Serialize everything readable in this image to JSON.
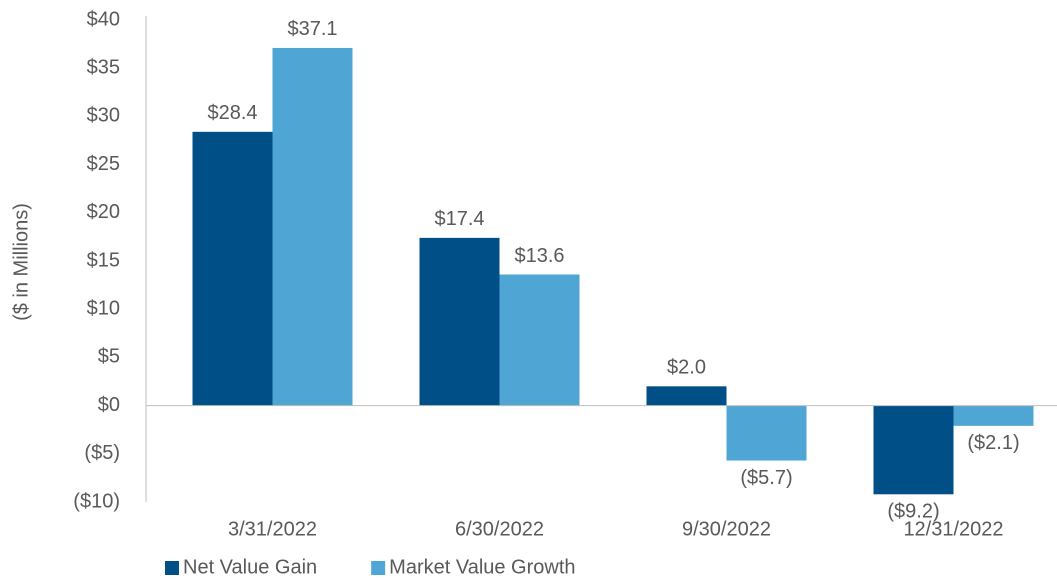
{
  "chart_data": {
    "type": "bar",
    "y_label": "($ in Millions)",
    "categories": [
      "3/31/2022",
      "6/30/2022",
      "9/30/2022",
      "12/31/2022"
    ],
    "series": [
      {
        "name": "Net Value Gain",
        "color": "#004f86",
        "values": [
          28.4,
          17.4,
          2.0,
          -9.2
        ],
        "value_labels": [
          "$28.4",
          "$17.4",
          "$2.0",
          "($9.2)"
        ]
      },
      {
        "name": "Market Value Growth",
        "color": "#4fa6d5",
        "values": [
          37.1,
          13.6,
          -5.7,
          -2.1
        ],
        "value_labels": [
          "$37.1",
          "$13.6",
          "($5.7)",
          "($2.1)"
        ]
      }
    ],
    "ylim": [
      -10,
      40
    ],
    "yticks": [
      {
        "value": -10,
        "label": "($10)"
      },
      {
        "value": -5,
        "label": "($5)"
      },
      {
        "value": 0,
        "label": "$0"
      },
      {
        "value": 5,
        "label": "$5"
      },
      {
        "value": 10,
        "label": "$10"
      },
      {
        "value": 15,
        "label": "$15"
      },
      {
        "value": 20,
        "label": "$20"
      },
      {
        "value": 25,
        "label": "$25"
      },
      {
        "value": 30,
        "label": "$30"
      },
      {
        "value": 35,
        "label": "$35"
      },
      {
        "value": 40,
        "label": "$40"
      }
    ],
    "grid": false,
    "legend": "bottom"
  }
}
